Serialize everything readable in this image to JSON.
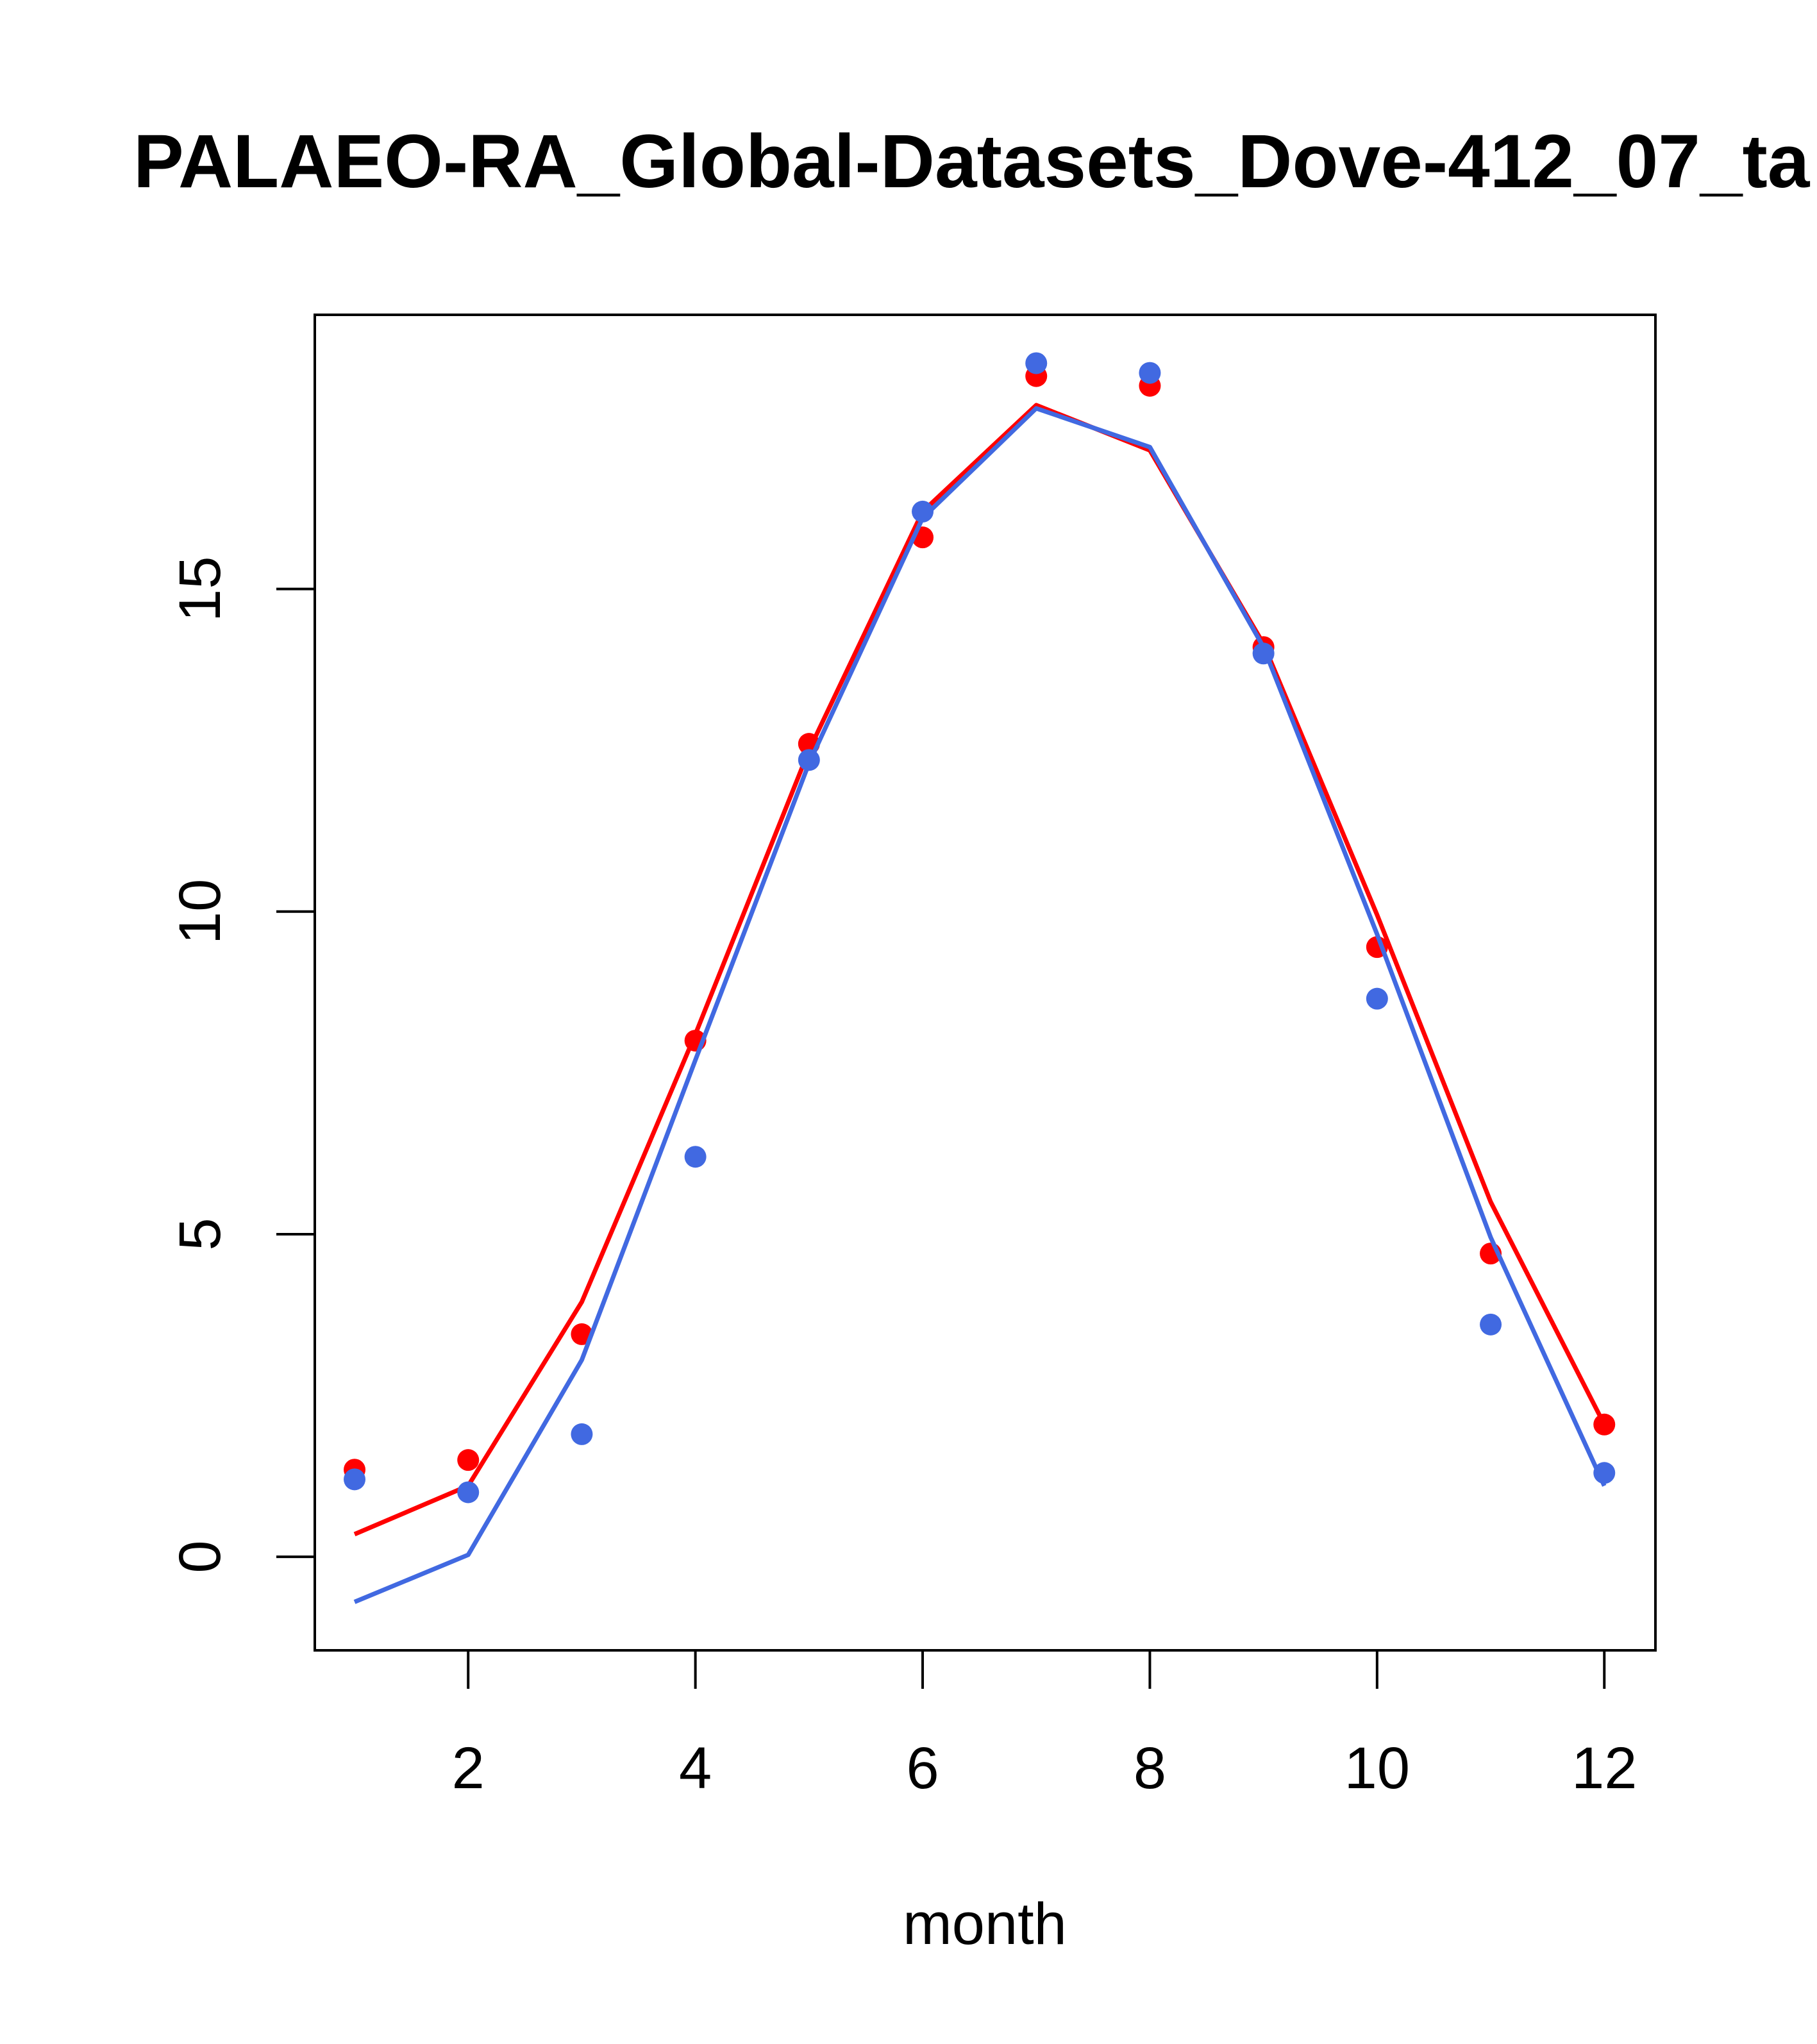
{
  "chart_data": {
    "type": "line",
    "title": "PALAEO-RA_Global-Datasets_Dove-412_07_ta",
    "xlabel": "month",
    "ylabel": "",
    "xlim": [
      0.65,
      12.45
    ],
    "ylim": [
      -1.45,
      19.25
    ],
    "x_ticks": [
      2,
      4,
      6,
      8,
      10,
      12
    ],
    "y_ticks": [
      0,
      5,
      10,
      15
    ],
    "x": [
      1,
      2,
      3,
      4,
      5,
      6,
      7,
      8,
      9,
      10,
      11,
      12
    ],
    "series": [
      {
        "name": "red",
        "color": "#ff0000",
        "line": [
          0.35,
          1.1,
          3.95,
          8.1,
          12.5,
          16.2,
          17.85,
          17.15,
          14.15,
          9.95,
          5.5,
          2.05
        ],
        "points": [
          1.35,
          1.5,
          3.45,
          8.0,
          12.6,
          15.8,
          18.3,
          18.15,
          14.1,
          9.45,
          4.7,
          2.05
        ]
      },
      {
        "name": "blue",
        "color": "#4169e1",
        "line": [
          -0.7,
          0.03,
          3.05,
          7.7,
          12.3,
          16.1,
          17.8,
          17.2,
          14.1,
          9.65,
          4.95,
          1.1
        ],
        "points": [
          1.2,
          1.0,
          1.9,
          6.2,
          12.35,
          16.2,
          18.5,
          18.35,
          14.0,
          8.65,
          3.6,
          1.3
        ]
      }
    ]
  }
}
